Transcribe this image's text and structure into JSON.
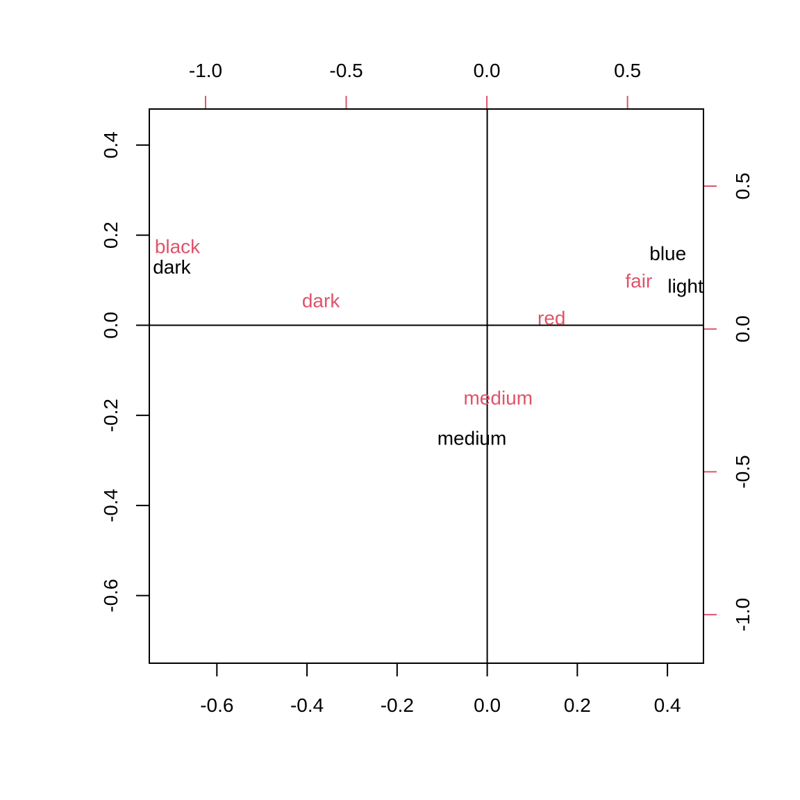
{
  "chart_data": {
    "type": "scatter",
    "title": "",
    "xlabel": "",
    "ylabel": "",
    "grid": false,
    "colors": {
      "rows": "#000000",
      "cols": "#DF536B",
      "axes": "#000000"
    },
    "primary_axes": {
      "xlim": [
        -0.75,
        0.48
      ],
      "ylim": [
        -0.75,
        0.48
      ],
      "x_ticks": [
        -0.6,
        -0.4,
        -0.2,
        0.0,
        0.2,
        0.4
      ],
      "x_tick_labels": [
        "-0.6",
        "-0.4",
        "-0.2",
        "0.0",
        "0.2",
        "0.4"
      ],
      "y_ticks": [
        -0.6,
        -0.4,
        -0.2,
        0.0,
        0.2,
        0.4
      ],
      "y_tick_labels": [
        "-0.6",
        "-0.4",
        "-0.2",
        "0.0",
        "0.2",
        "0.4"
      ]
    },
    "secondary_axes": {
      "xlim": [
        -1.2,
        0.77
      ],
      "ylim": [
        -1.17,
        0.77
      ],
      "x_ticks": [
        -1.0,
        -0.5,
        0.0,
        0.5
      ],
      "x_tick_labels": [
        "-1.0",
        "-0.5",
        "0.0",
        "0.5"
      ],
      "y_ticks": [
        -1.0,
        -0.5,
        0.0,
        0.5
      ],
      "y_tick_labels": [
        "-1.0",
        "-0.5",
        "0.0",
        "0.5"
      ]
    },
    "reference_lines": {
      "x": 0,
      "y": 0
    },
    "series": [
      {
        "axes": "primary",
        "points": [
          {
            "label": "blue",
            "x": 0.401,
            "y": 0.16
          },
          {
            "label": "light",
            "x": 0.44,
            "y": 0.088
          },
          {
            "label": "medium",
            "x": -0.034,
            "y": -0.25
          },
          {
            "label": "dark",
            "x": -0.7,
            "y": 0.13
          }
        ]
      },
      {
        "axes": "secondary",
        "points": [
          {
            "label": "fair",
            "x": 0.54,
            "y": 0.17
          },
          {
            "label": "red",
            "x": 0.23,
            "y": 0.04
          },
          {
            "label": "medium",
            "x": 0.04,
            "y": -0.24
          },
          {
            "label": "dark",
            "x": -0.59,
            "y": 0.1
          },
          {
            "label": "black",
            "x": -1.1,
            "y": 0.29
          }
        ]
      }
    ]
  }
}
